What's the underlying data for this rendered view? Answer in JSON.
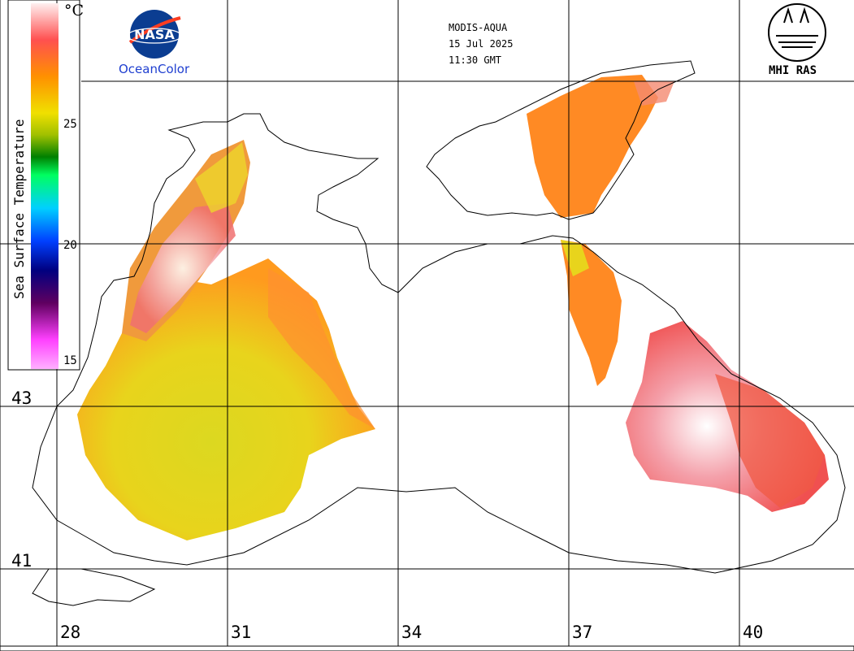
{
  "header": {
    "sensor": "MODIS-AQUA",
    "date": "15 Jul 2025",
    "time": "11:30 GMT"
  },
  "logos": {
    "nasa_wordmark": "NASA",
    "ocean_color": "OceanColor",
    "mhi": "MHI RAS"
  },
  "legend": {
    "title": "Sea Surface Temperature",
    "unit": "°C",
    "ticks": [
      "25",
      "20",
      "15"
    ],
    "range": [
      15,
      30
    ],
    "colors": [
      "#ff9cff",
      "#c000c0",
      "#6a006a",
      "#0000c8",
      "#0060ff",
      "#00c8ff",
      "#00ff80",
      "#00a000",
      "#a8c800",
      "#f0e000",
      "#ff9a00",
      "#ff5030",
      "#ff8080",
      "#ffffff"
    ]
  },
  "axes": {
    "longitude_labels": [
      "28",
      "31",
      "34",
      "37",
      "40"
    ],
    "latitude_labels": [
      "43",
      "41"
    ]
  },
  "colors": {
    "warm_orange": "#ff8a1c",
    "hot_red": "#f05a50",
    "pink": "#f4a0a8",
    "yellow": "#e6dc1a",
    "coast": "#000000",
    "grid": "#000000"
  }
}
